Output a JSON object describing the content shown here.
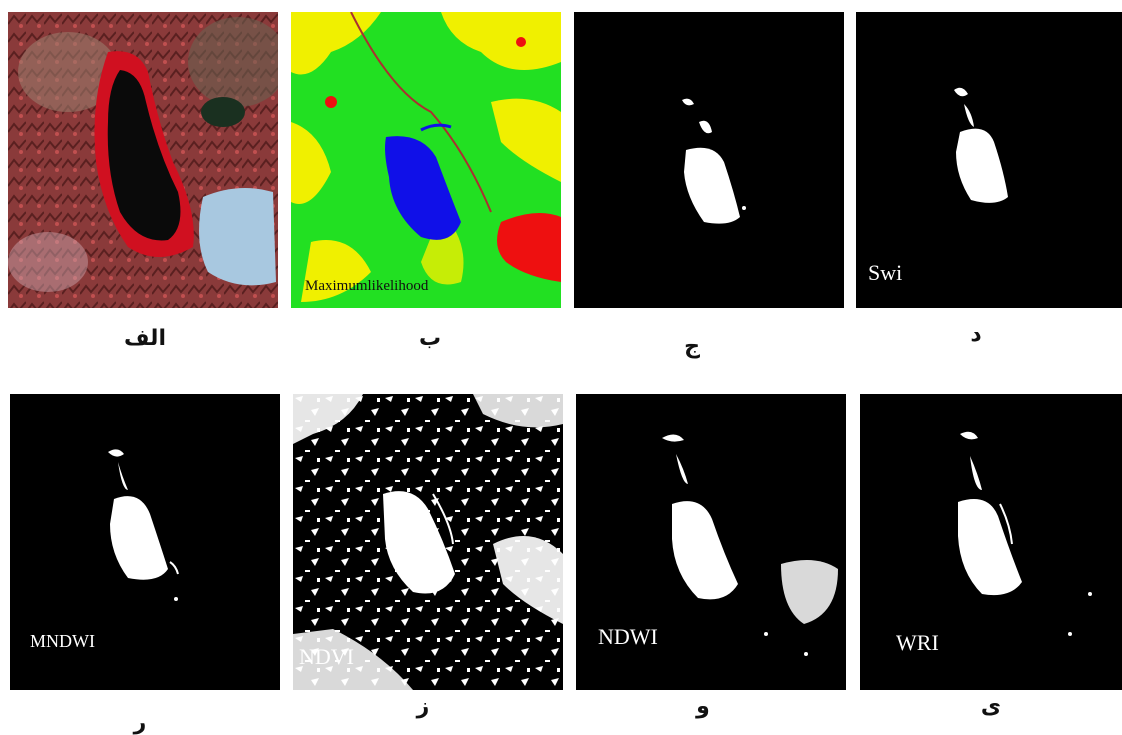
{
  "panels": [
    {
      "id": "alef",
      "caption": "الف",
      "label": ""
    },
    {
      "id": "be",
      "caption": "ب",
      "label": "Maximumlikelihood"
    },
    {
      "id": "jim",
      "caption": "ج",
      "label": ""
    },
    {
      "id": "dal",
      "caption": "د",
      "label": "Swi"
    },
    {
      "id": "re",
      "caption": "ر",
      "label": "MNDWI"
    },
    {
      "id": "ze",
      "caption": "ز",
      "label": "NDVI"
    },
    {
      "id": "vav",
      "caption": "و",
      "label": "NDWI"
    },
    {
      "id": "ye",
      "caption": "ی",
      "label": "WRI"
    }
  ],
  "colors": {
    "water": "#1010e8",
    "vegetation": "#22e022",
    "bare": "#f0f000",
    "urban": "#ee1010",
    "false_color_red": "#a02030",
    "lake_dark": "#0a0a0a",
    "city_blue": "#a8c8e0",
    "mask_water": "#ffffff",
    "mask_bg": "#000000"
  }
}
